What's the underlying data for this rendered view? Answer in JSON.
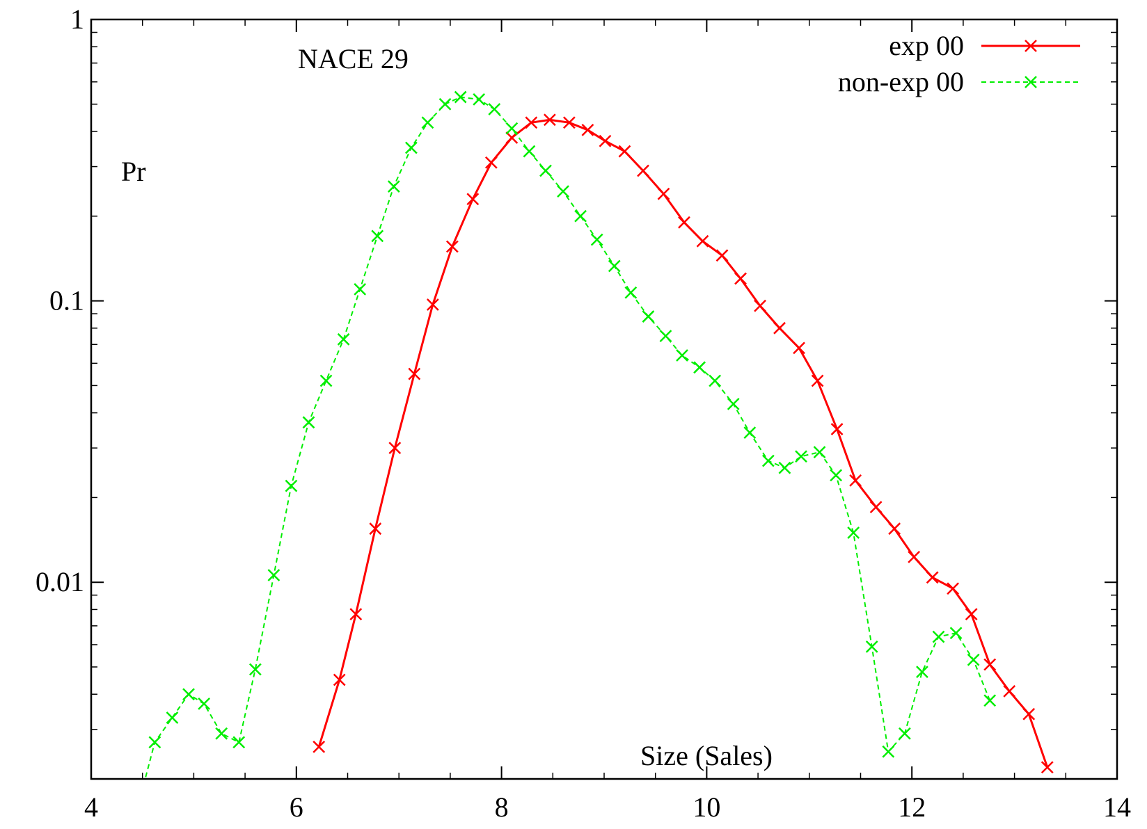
{
  "chart_data": {
    "type": "line",
    "title": "",
    "annotation": "NACE 29",
    "xlabel": "Size (Sales)",
    "ylabel": "Pr",
    "xlim": [
      4,
      14
    ],
    "ylim": [
      0.002,
      1
    ],
    "yscale": "log",
    "grid": false,
    "legend_position": "top-right",
    "x_ticks": [
      {
        "value": 4,
        "label": "4"
      },
      {
        "value": 6,
        "label": "6"
      },
      {
        "value": 8,
        "label": "8"
      },
      {
        "value": 10,
        "label": "10"
      },
      {
        "value": 12,
        "label": "12"
      },
      {
        "value": 14,
        "label": "14"
      }
    ],
    "y_ticks": [
      {
        "value": 1,
        "label": "1"
      },
      {
        "value": 0.1,
        "label": "0.1"
      },
      {
        "value": 0.01,
        "label": "0.01"
      }
    ],
    "series": [
      {
        "name": "exp 00",
        "color": "#ff0000",
        "style": "solid",
        "marker": "x",
        "x": [
          6.22,
          6.42,
          6.58,
          6.77,
          6.96,
          7.15,
          7.33,
          7.52,
          7.72,
          7.9,
          8.1,
          8.29,
          8.47,
          8.66,
          8.84,
          9.01,
          9.2,
          9.38,
          9.58,
          9.78,
          9.96,
          10.15,
          10.33,
          10.52,
          10.71,
          10.9,
          11.08,
          11.27,
          11.45,
          11.65,
          11.83,
          12.02,
          12.2,
          12.4,
          12.58,
          12.76,
          12.95,
          13.14,
          13.32
        ],
        "y": [
          0.0026,
          0.0045,
          0.0077,
          0.0155,
          0.03,
          0.055,
          0.097,
          0.156,
          0.23,
          0.31,
          0.38,
          0.43,
          0.44,
          0.43,
          0.405,
          0.37,
          0.34,
          0.29,
          0.24,
          0.19,
          0.163,
          0.145,
          0.12,
          0.096,
          0.08,
          0.068,
          0.052,
          0.035,
          0.023,
          0.0185,
          0.0155,
          0.0123,
          0.0104,
          0.0095,
          0.0077,
          0.0051,
          0.0041,
          0.0034,
          0.0022
        ]
      },
      {
        "name": "non-exp 00",
        "color": "#00ee00",
        "style": "dashed",
        "marker": "x",
        "x": [
          4.51,
          4.62,
          4.79,
          4.95,
          5.1,
          5.27,
          5.44,
          5.6,
          5.78,
          5.95,
          6.12,
          6.29,
          6.46,
          6.62,
          6.79,
          6.95,
          7.12,
          7.28,
          7.45,
          7.6,
          7.78,
          7.93,
          8.1,
          8.27,
          8.43,
          8.6,
          8.77,
          8.93,
          9.1,
          9.26,
          9.43,
          9.6,
          9.76,
          9.93,
          10.08,
          10.26,
          10.42,
          10.6,
          10.76,
          10.92,
          11.1,
          11.26,
          11.43,
          11.61,
          11.77,
          11.93,
          12.1,
          12.26,
          12.43,
          12.6,
          12.76
        ],
        "y": [
          0.0019,
          0.0027,
          0.0033,
          0.004,
          0.0037,
          0.0029,
          0.0027,
          0.0049,
          0.0106,
          0.022,
          0.037,
          0.052,
          0.073,
          0.11,
          0.17,
          0.255,
          0.35,
          0.43,
          0.5,
          0.53,
          0.52,
          0.48,
          0.41,
          0.34,
          0.29,
          0.245,
          0.2,
          0.165,
          0.133,
          0.107,
          0.088,
          0.075,
          0.064,
          0.058,
          0.052,
          0.043,
          0.034,
          0.027,
          0.0255,
          0.028,
          0.029,
          0.024,
          0.015,
          0.0059,
          0.0025,
          0.0029,
          0.0048,
          0.0064,
          0.0066,
          0.0053,
          0.0038
        ]
      }
    ]
  }
}
